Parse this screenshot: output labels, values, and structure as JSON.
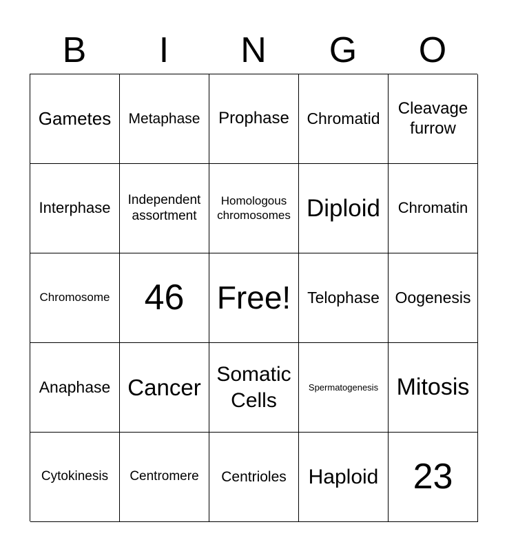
{
  "header": [
    "B",
    "I",
    "N",
    "G",
    "O"
  ],
  "cells": [
    "Gametes",
    "Metaphase",
    "Prophase",
    "Chromatid",
    "Cleavage furrow",
    "Interphase",
    "Independent assortment",
    "Homologous chromosomes",
    "Diploid",
    "Chromatin",
    "Chromosome",
    "46",
    "Free!",
    "Telophase",
    "Oogenesis",
    "Anaphase",
    "Cancer",
    "Somatic Cells",
    "Spermatogenesis",
    "Mitosis",
    "Cytokinesis",
    "Centromere",
    "Centrioles",
    "Haploid",
    "23"
  ]
}
